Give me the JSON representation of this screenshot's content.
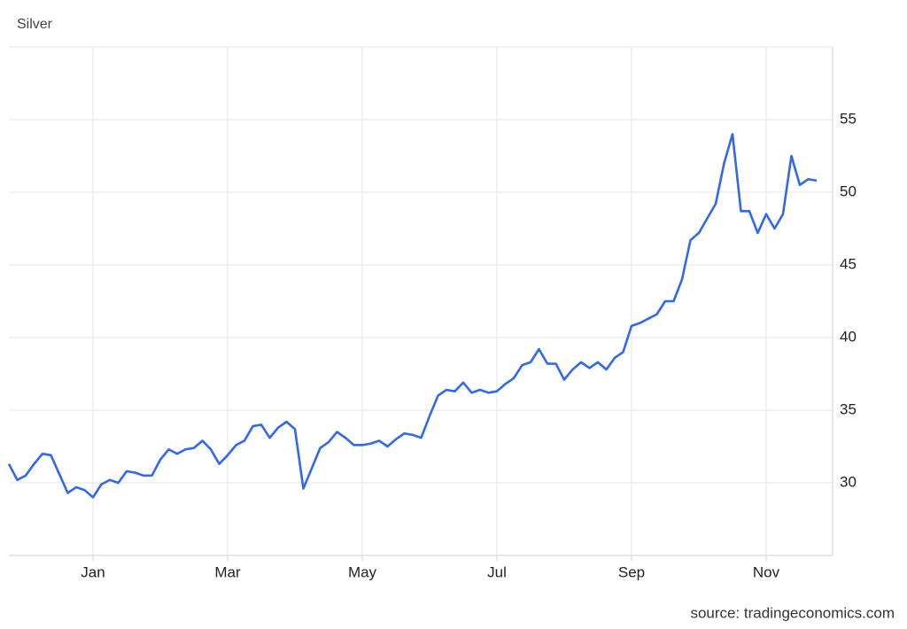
{
  "chart_data": {
    "type": "line",
    "title": "Silver",
    "source": "source: tradingeconomics.com",
    "categories": [
      null,
      null,
      null,
      null,
      null,
      null,
      null,
      null,
      null,
      null,
      "Jan",
      null,
      null,
      null,
      null,
      null,
      null,
      null,
      null,
      null,
      null,
      null,
      null,
      null,
      null,
      null,
      "Mar",
      null,
      null,
      null,
      null,
      null,
      null,
      null,
      null,
      null,
      null,
      null,
      null,
      null,
      null,
      null,
      "May",
      null,
      null,
      null,
      null,
      null,
      null,
      null,
      null,
      null,
      null,
      null,
      null,
      null,
      null,
      null,
      "Jul",
      null,
      null,
      null,
      null,
      null,
      null,
      null,
      null,
      null,
      null,
      null,
      null,
      null,
      null,
      null,
      "Sep",
      null,
      null,
      null,
      null,
      null,
      null,
      null,
      null,
      null,
      null,
      null,
      null,
      null,
      null,
      null,
      "Nov",
      null,
      null,
      null,
      null,
      null,
      null
    ],
    "values": [
      31.3,
      30.2,
      30.5,
      31.3,
      32.0,
      31.9,
      30.6,
      29.3,
      29.7,
      29.5,
      29.0,
      29.9,
      30.2,
      30.0,
      30.8,
      30.7,
      30.5,
      30.5,
      31.6,
      32.3,
      32.0,
      32.3,
      32.4,
      32.9,
      32.3,
      31.3,
      31.9,
      32.6,
      32.9,
      33.9,
      34.0,
      33.1,
      33.8,
      34.2,
      33.7,
      29.6,
      31.0,
      32.4,
      32.8,
      33.5,
      33.1,
      32.6,
      32.6,
      32.7,
      32.9,
      32.5,
      33.0,
      33.4,
      33.3,
      33.1,
      34.6,
      36.0,
      36.4,
      36.3,
      36.9,
      36.2,
      36.4,
      36.2,
      36.3,
      36.8,
      37.2,
      38.1,
      38.3,
      39.2,
      38.2,
      38.2,
      37.1,
      37.8,
      38.3,
      37.9,
      38.3,
      37.8,
      38.6,
      39.0,
      40.8,
      41.0,
      41.3,
      41.6,
      42.5,
      42.5,
      44.0,
      46.7,
      47.2,
      48.2,
      49.2,
      52.0,
      54.0,
      48.7,
      48.7,
      47.2,
      48.5,
      47.5,
      48.5,
      52.5,
      50.5,
      50.9,
      50.8
    ],
    "color": "#3068ee",
    "ylim": [
      25,
      60
    ],
    "yticks": [
      30,
      35,
      40,
      45,
      50,
      55
    ],
    "grid": true
  }
}
